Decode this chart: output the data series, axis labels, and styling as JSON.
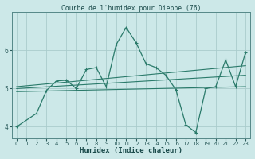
{
  "title": "Courbe de l'humidex pour Dieppe (76)",
  "xlabel": "Humidex (Indice chaleur)",
  "bg_color": "#cce8e8",
  "grid_color": "#aacccc",
  "line_color": "#2a7a6a",
  "xlim": [
    -0.5,
    23.5
  ],
  "ylim": [
    3.7,
    7.0
  ],
  "yticks": [
    4,
    5,
    6
  ],
  "xticks": [
    0,
    1,
    2,
    3,
    4,
    5,
    6,
    7,
    8,
    9,
    10,
    11,
    12,
    13,
    14,
    15,
    16,
    17,
    18,
    19,
    20,
    21,
    22,
    23
  ],
  "series": [
    [
      0,
      4.0
    ],
    [
      2,
      4.35
    ],
    [
      3,
      4.95
    ],
    [
      4,
      5.2
    ],
    [
      5,
      5.22
    ],
    [
      6,
      5.0
    ],
    [
      7,
      5.5
    ],
    [
      8,
      5.55
    ],
    [
      9,
      5.05
    ],
    [
      10,
      6.15
    ],
    [
      11,
      6.6
    ],
    [
      12,
      6.2
    ],
    [
      13,
      5.65
    ],
    [
      14,
      5.55
    ],
    [
      15,
      5.35
    ],
    [
      16,
      4.97
    ],
    [
      17,
      4.05
    ],
    [
      18,
      3.85
    ],
    [
      19,
      5.0
    ],
    [
      20,
      5.05
    ],
    [
      21,
      5.75
    ],
    [
      22,
      5.05
    ],
    [
      23,
      5.95
    ]
  ],
  "trend_series": [
    [
      [
        0,
        4.92
      ],
      [
        23,
        5.05
      ]
    ],
    [
      [
        0,
        5.0
      ],
      [
        23,
        5.35
      ]
    ],
    [
      [
        0,
        5.05
      ],
      [
        23,
        5.6
      ]
    ]
  ]
}
